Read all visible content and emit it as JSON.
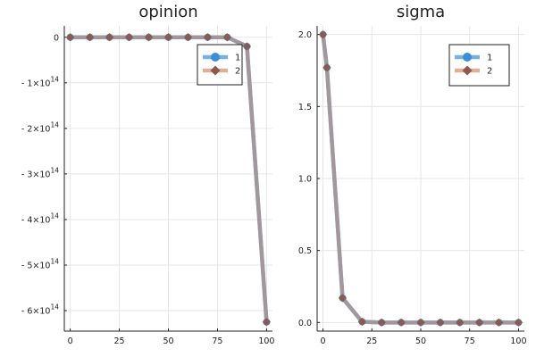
{
  "colors": {
    "series1": "#3b8fd6",
    "series2": "#d98a6a",
    "overlap": "#a48f8f",
    "marker_fill": "#8c5a4e",
    "grid": "#e6e6e6",
    "axis": "#222222"
  },
  "chart_data": [
    {
      "type": "line",
      "title": "opinion",
      "xlabel": "",
      "ylabel": "",
      "xlim": [
        -3,
        103
      ],
      "ylim": [
        -645000000000000.0,
        25000000000000.0
      ],
      "xticks": [
        0,
        25,
        50,
        75,
        100
      ],
      "xtick_labels": [
        "0",
        "25",
        "50",
        "75",
        "100"
      ],
      "yticks": [
        0,
        -100000000000000.0,
        -200000000000000.0,
        -300000000000000.0,
        -400000000000000.0,
        -500000000000000.0,
        -600000000000000.0
      ],
      "ytick_labels": [
        {
          "base": "0",
          "exp": ""
        },
        {
          "base": "- 1×10",
          "exp": "14"
        },
        {
          "base": "- 2×10",
          "exp": "14"
        },
        {
          "base": "- 3×10",
          "exp": "14"
        },
        {
          "base": "- 4×10",
          "exp": "14"
        },
        {
          "base": "- 5×10",
          "exp": "14"
        },
        {
          "base": "- 6×10",
          "exp": "14"
        }
      ],
      "grid": true,
      "legend_position": "top-right",
      "x": [
        0,
        10,
        20,
        30,
        40,
        50,
        60,
        70,
        80,
        90,
        100
      ],
      "series": [
        {
          "name": "1",
          "marker": "circle",
          "values": [
            0,
            0,
            0,
            0,
            0,
            0,
            0,
            0,
            0,
            -20000000000000.0,
            -625000000000000.0
          ]
        },
        {
          "name": "2",
          "marker": "diamond",
          "values": [
            0,
            0,
            0,
            0,
            0,
            0,
            0,
            0,
            0,
            -20000000000000.0,
            -625000000000000.0
          ]
        }
      ]
    },
    {
      "type": "line",
      "title": "sigma",
      "xlabel": "",
      "ylabel": "",
      "xlim": [
        -3,
        103
      ],
      "ylim": [
        -0.06,
        2.06
      ],
      "xticks": [
        0,
        25,
        50,
        75,
        100
      ],
      "xtick_labels": [
        "0",
        "25",
        "50",
        "75",
        "100"
      ],
      "yticks": [
        0,
        0.5,
        1.0,
        1.5,
        2.0
      ],
      "ytick_labels": [
        {
          "base": "0.0",
          "exp": ""
        },
        {
          "base": "0.5",
          "exp": ""
        },
        {
          "base": "1.0",
          "exp": ""
        },
        {
          "base": "1.5",
          "exp": ""
        },
        {
          "base": "2.0",
          "exp": ""
        }
      ],
      "grid": true,
      "legend_position": "top-right",
      "x": [
        0,
        2,
        10,
        20,
        30,
        40,
        50,
        60,
        70,
        80,
        90,
        100
      ],
      "series": [
        {
          "name": "1",
          "marker": "circle",
          "values": [
            2.0,
            1.77,
            0.17,
            0.005,
            0,
            0,
            0,
            0,
            0,
            0,
            0,
            0
          ]
        },
        {
          "name": "2",
          "marker": "diamond",
          "values": [
            2.0,
            1.77,
            0.17,
            0.005,
            0,
            0,
            0,
            0,
            0,
            0,
            0,
            0
          ]
        }
      ]
    }
  ]
}
